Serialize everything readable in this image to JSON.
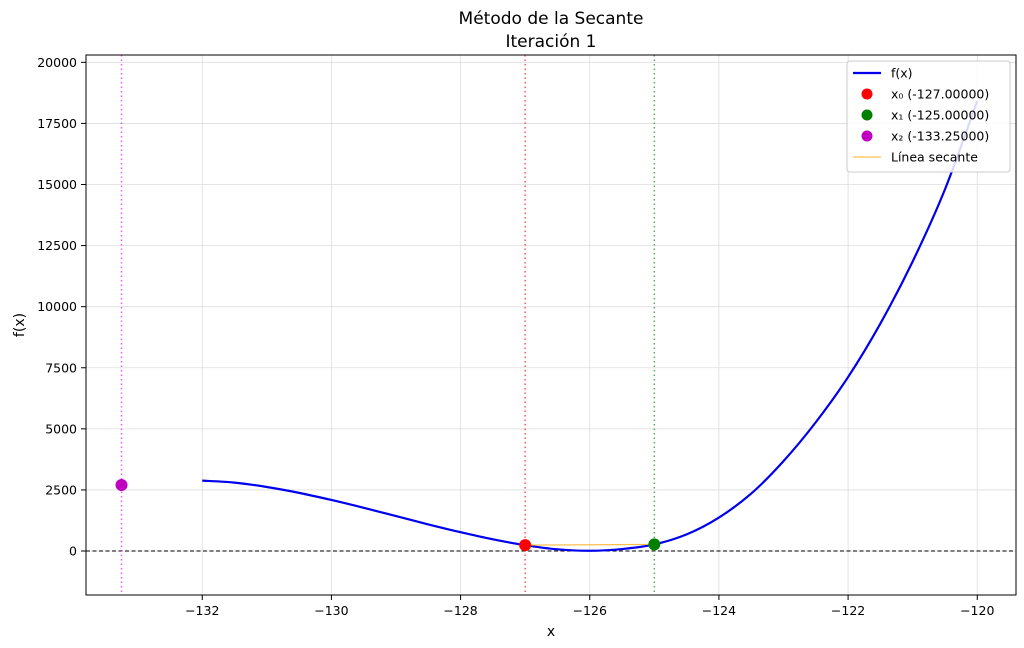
{
  "chart_data": {
    "type": "line",
    "title": "Método de la Secante",
    "subtitle": "Iteración 1",
    "xlabel": "x",
    "ylabel": "f(x)",
    "xlim": [
      -133.8,
      -119.4
    ],
    "ylim": [
      -1800,
      20300
    ],
    "x_ticks": [
      -132,
      -130,
      -128,
      -126,
      -124,
      -122,
      -120
    ],
    "x_tick_labels": [
      "−132",
      "−130",
      "−128",
      "−126",
      "−124",
      "−122",
      "−120"
    ],
    "y_ticks": [
      0,
      2500,
      5000,
      7500,
      10000,
      12500,
      15000,
      17500,
      20000
    ],
    "y_tick_labels": [
      "0",
      "2500",
      "5000",
      "7500",
      "10000",
      "12500",
      "15000",
      "17500",
      "20000"
    ],
    "grid": true,
    "legend_position": "top-right",
    "series": [
      {
        "name": "f(x)",
        "kind": "line",
        "color": "#0000ee",
        "x": [
          -132,
          -131.5,
          -131,
          -130.5,
          -130,
          -129.5,
          -129,
          -128.5,
          -128,
          -127.5,
          -127,
          -126.5,
          -126,
          -125.5,
          -125,
          -124.5,
          -124,
          -123.5,
          -123,
          -122.5,
          -122,
          -121.5,
          -121,
          -120.5,
          -120
        ],
        "y": [
          2880,
          2800,
          2620,
          2380,
          2090,
          1770,
          1430,
          1090,
          770,
          480,
          240,
          70,
          10,
          80,
          270,
          680,
          1370,
          2350,
          3680,
          5270,
          7120,
          9310,
          11850,
          14800,
          18420
        ]
      },
      {
        "name": "x₀ (-127.00000)",
        "kind": "point",
        "color": "#ff0000",
        "x": -127.0,
        "y": 240
      },
      {
        "name": "x₁ (-125.00000)",
        "kind": "point",
        "color": "#008000",
        "x": -125.0,
        "y": 270
      },
      {
        "name": "x₂ (-133.25000)",
        "kind": "point",
        "color": "#bf00bf",
        "x": -133.25,
        "y": 2700
      },
      {
        "name": "Línea secante",
        "kind": "segment",
        "color": "#ffa500",
        "x": [
          -127.0,
          -125.0
        ],
        "y": [
          240,
          270
        ]
      }
    ],
    "reference_lines": [
      {
        "orientation": "horizontal",
        "value": 0,
        "color": "#000000",
        "style": "dashed"
      },
      {
        "orientation": "vertical",
        "value": -127.0,
        "color": "#ff0000",
        "style": "dotted"
      },
      {
        "orientation": "vertical",
        "value": -125.0,
        "color": "#008000",
        "style": "dotted"
      },
      {
        "orientation": "vertical",
        "value": -133.25,
        "color": "#ee00ee",
        "style": "dotted"
      }
    ]
  }
}
